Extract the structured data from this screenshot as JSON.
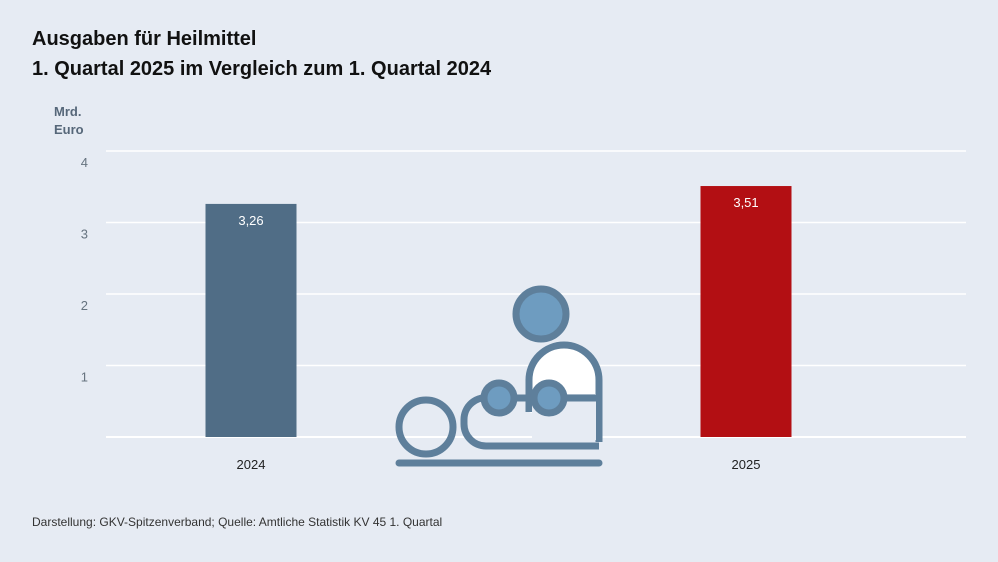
{
  "title": {
    "line1": "Ausgaben für Heilmittel",
    "line2": "1. Quartal 2025 im Vergleich zum 1. Quartal 2024"
  },
  "unit_label": {
    "line1": "Mrd.",
    "line2": "Euro"
  },
  "footer": "Darstellung: GKV-Spitzenverband; Quelle: Amtliche Statistik KV 45 1. Quartal",
  "icon": "therapist-with-patient-icon",
  "chart_data": {
    "type": "bar",
    "categories": [
      "2024",
      "2025"
    ],
    "values": [
      3.26,
      3.51
    ],
    "value_labels": [
      "3,26",
      "3,51"
    ],
    "title": "Ausgaben für Heilmittel",
    "subtitle": "1. Quartal 2025 im Vergleich zum 1. Quartal 2024",
    "ylabel": "Mrd. Euro",
    "ylim": [
      0,
      4
    ],
    "yticks": [
      1,
      2,
      3,
      4
    ],
    "grid": true,
    "colors": [
      "#506d86",
      "#b30f13"
    ]
  }
}
